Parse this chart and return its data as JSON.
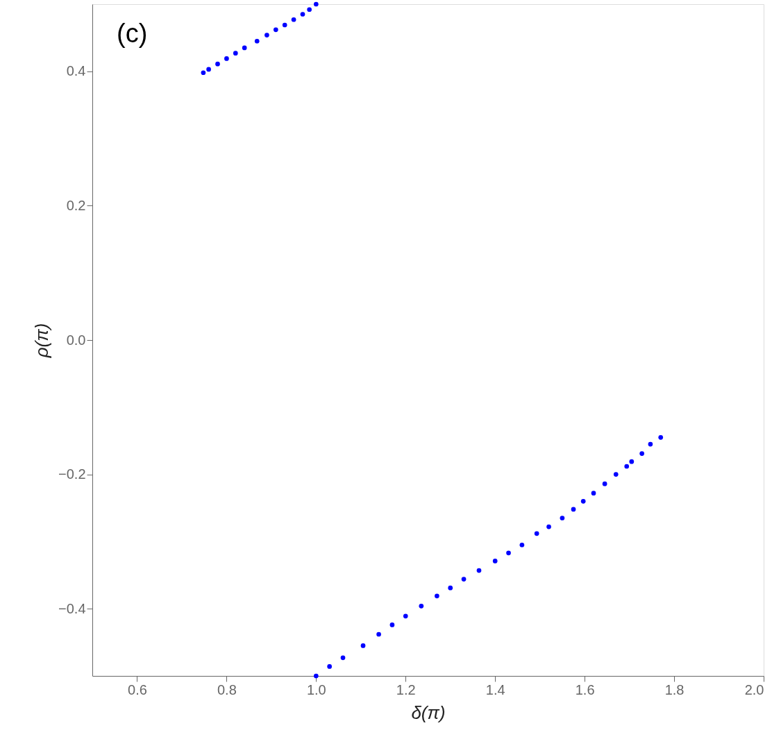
{
  "chart_data": {
    "type": "scatter",
    "xlabel": "δ(π)",
    "ylabel": "ρ(π)",
    "annotations": [
      "(c)"
    ],
    "xlim": [
      0.5,
      2.0
    ],
    "ylim": [
      -0.5,
      0.5
    ],
    "xticks": [
      0.6,
      0.8,
      {
        "value": 1,
        "label": "1.0"
      },
      1.2,
      1.4,
      1.6,
      1.8,
      {
        "value": 2,
        "label": "2.0"
      }
    ],
    "yticks": [
      {
        "value": -0.4,
        "label": "−0.4"
      },
      {
        "value": -0.2,
        "label": "−0.2"
      },
      {
        "value": 0,
        "label": "0.0"
      },
      0.2,
      0.4
    ],
    "grid": false,
    "legend": false,
    "series": [
      {
        "color": "#0000ff",
        "x": [
          0.748,
          0.76,
          0.78,
          0.8,
          0.82,
          0.84,
          0.868,
          0.89,
          0.91,
          0.93,
          0.95,
          0.97,
          0.985,
          1.0,
          1.0,
          1.03,
          1.06,
          1.105,
          1.14,
          1.17,
          1.2,
          1.235,
          1.27,
          1.3,
          1.33,
          1.364,
          1.4,
          1.43,
          1.46,
          1.493,
          1.52,
          1.55,
          1.575,
          1.597,
          1.62,
          1.645,
          1.67,
          1.694,
          1.705,
          1.728,
          1.747,
          1.77
        ],
        "values": [
          0.398,
          0.403,
          0.411,
          0.419,
          0.427,
          0.435,
          0.445,
          0.454,
          0.462,
          0.469,
          0.477,
          0.485,
          0.492,
          0.5,
          -0.5,
          -0.486,
          -0.473,
          -0.455,
          -0.438,
          -0.424,
          -0.411,
          -0.396,
          -0.381,
          -0.369,
          -0.356,
          -0.343,
          -0.329,
          -0.317,
          -0.305,
          -0.288,
          -0.278,
          -0.265,
          -0.252,
          -0.24,
          -0.228,
          -0.214,
          -0.2,
          -0.188,
          -0.181,
          -0.169,
          -0.155,
          -0.145
        ]
      }
    ]
  }
}
